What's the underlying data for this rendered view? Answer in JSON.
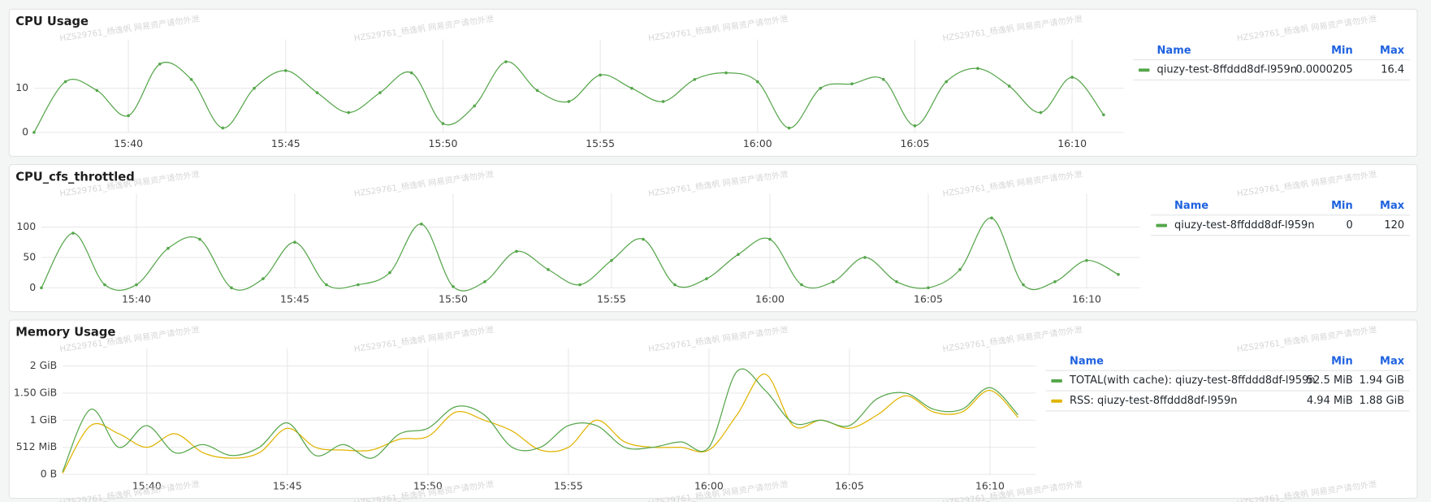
{
  "watermark": "HZS29761_杨逸帆 网易资产请勿外泄",
  "chart_data": [
    {
      "type": "line",
      "title": "CPU Usage",
      "x": [
        "15:37",
        "15:38",
        "15:39",
        "15:40",
        "15:41",
        "15:42",
        "15:43",
        "15:44",
        "15:45",
        "15:46",
        "15:47",
        "15:48",
        "15:49",
        "15:50",
        "15:51",
        "15:52",
        "15:53",
        "15:54",
        "15:55",
        "15:56",
        "15:57",
        "15:58",
        "15:59",
        "16:00",
        "16:01",
        "16:02",
        "16:03",
        "16:04",
        "16:05",
        "16:06",
        "16:07",
        "16:08",
        "16:09",
        "16:10",
        "16:11"
      ],
      "xlim": [
        "15:37",
        "16:11"
      ],
      "xticks": [
        "15:40",
        "15:45",
        "15:50",
        "15:55",
        "16:00",
        "16:05",
        "16:10"
      ],
      "ylim": [
        0,
        19
      ],
      "yticks": [
        0,
        10
      ],
      "grid": true,
      "points": true,
      "legend_columns": [
        "Name",
        "Min",
        "Max"
      ],
      "series": [
        {
          "name": "qiuzy-test-8ffddd8df-l959n",
          "color": "#56a64b",
          "min": 2.05e-05,
          "max": 16.4,
          "values": [
            0,
            11.5,
            9.5,
            3.8,
            15.5,
            12,
            1,
            10,
            14,
            9,
            4.5,
            9,
            13.5,
            2,
            6,
            16,
            9.5,
            7,
            13,
            10,
            7,
            12,
            13.5,
            11.5,
            1,
            10,
            11,
            12,
            1.5,
            11.5,
            14.5,
            10.5,
            4.5,
            12.5,
            4
          ]
        }
      ]
    },
    {
      "type": "line",
      "title": "CPU_cfs_throttled",
      "x": [
        "15:37",
        "15:38",
        "15:39",
        "15:40",
        "15:41",
        "15:42",
        "15:43",
        "15:44",
        "15:45",
        "15:46",
        "15:47",
        "15:48",
        "15:49",
        "15:50",
        "15:51",
        "15:52",
        "15:53",
        "15:54",
        "15:55",
        "15:56",
        "15:57",
        "15:58",
        "15:59",
        "16:00",
        "16:01",
        "16:02",
        "16:03",
        "16:04",
        "16:05",
        "16:06",
        "16:07",
        "16:08",
        "16:09",
        "16:10",
        "16:11"
      ],
      "xlim": [
        "15:37",
        "16:11"
      ],
      "xticks": [
        "15:40",
        "15:45",
        "15:50",
        "15:55",
        "16:00",
        "16:05",
        "16:10"
      ],
      "ylim": [
        0,
        140
      ],
      "yticks": [
        0,
        50,
        100
      ],
      "grid": true,
      "points": true,
      "legend_columns": [
        "Name",
        "Min",
        "Max"
      ],
      "series": [
        {
          "name": "qiuzy-test-8ffddd8df-l959n",
          "color": "#56a64b",
          "min": 0,
          "max": 120,
          "values": [
            0,
            90,
            5,
            5,
            65,
            80,
            0,
            15,
            75,
            5,
            5,
            25,
            105,
            2,
            10,
            60,
            30,
            5,
            45,
            80,
            5,
            15,
            55,
            80,
            5,
            10,
            50,
            10,
            0,
            30,
            115,
            5,
            10,
            45,
            22
          ]
        }
      ]
    },
    {
      "type": "line",
      "title": "Memory Usage",
      "x": [
        "15:37",
        "15:38",
        "15:39",
        "15:40",
        "15:41",
        "15:42",
        "15:43",
        "15:44",
        "15:45",
        "15:46",
        "15:47",
        "15:48",
        "15:49",
        "15:50",
        "15:51",
        "15:52",
        "15:53",
        "15:54",
        "15:55",
        "15:56",
        "15:57",
        "15:58",
        "15:59",
        "16:00",
        "16:01",
        "16:02",
        "16:03",
        "16:04",
        "16:05",
        "16:06",
        "16:07",
        "16:08",
        "16:09",
        "16:10",
        "16:11"
      ],
      "xlim": [
        "15:37",
        "16:11"
      ],
      "xticks": [
        "15:40",
        "15:45",
        "15:50",
        "15:55",
        "16:00",
        "16:05",
        "16:10"
      ],
      "ylim": [
        0,
        2.15
      ],
      "yticks": [
        {
          "value": 0,
          "label": "0 B"
        },
        {
          "value": 0.5,
          "label": "512 MiB"
        },
        {
          "value": 1,
          "label": "1 GiB"
        },
        {
          "value": 1.5,
          "label": "1.50 GiB"
        },
        {
          "value": 2,
          "label": "2 GiB"
        }
      ],
      "grid": true,
      "points": false,
      "legend_columns": [
        "Name",
        "Min",
        "Max"
      ],
      "series": [
        {
          "name": "TOTAL(with cache): qiuzy-test-8ffddd8df-l959n",
          "color": "#56a64b",
          "min": "52.5 MiB",
          "max": "1.94 GiB",
          "values": [
            0.05,
            1.2,
            0.5,
            0.9,
            0.4,
            0.55,
            0.35,
            0.5,
            0.95,
            0.35,
            0.55,
            0.3,
            0.75,
            0.85,
            1.25,
            1.1,
            0.5,
            0.5,
            0.9,
            0.9,
            0.5,
            0.5,
            0.6,
            0.5,
            1.9,
            1.55,
            0.95,
            1.0,
            0.9,
            1.4,
            1.5,
            1.2,
            1.2,
            1.6,
            1.1
          ]
        },
        {
          "name": "RSS: qiuzy-test-8ffddd8df-l959n",
          "color": "#e0b400",
          "min": "4.94 MiB",
          "max": "1.88 GiB",
          "values": [
            0.02,
            0.9,
            0.75,
            0.5,
            0.75,
            0.4,
            0.3,
            0.4,
            0.85,
            0.5,
            0.45,
            0.45,
            0.65,
            0.7,
            1.15,
            1.0,
            0.8,
            0.45,
            0.5,
            1.0,
            0.6,
            0.5,
            0.5,
            0.45,
            1.1,
            1.85,
            0.9,
            1.0,
            0.85,
            1.1,
            1.45,
            1.15,
            1.15,
            1.55,
            1.05
          ]
        }
      ]
    }
  ]
}
